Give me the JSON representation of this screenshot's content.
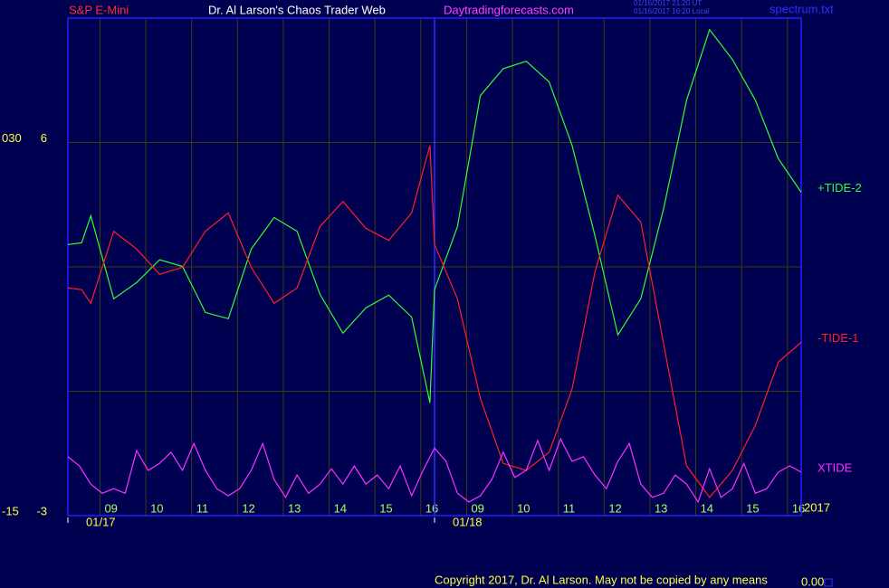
{
  "chart_data": {
    "type": "line",
    "header": {
      "instrument": "S&P E-Mini",
      "site": "Dr. Al Larson's Chaos Trader Web",
      "url": "Daytradingforecasts.com",
      "time_ut": "01/16/2017 21:20 UT",
      "time_local": "01/16/2017 16:20 Local",
      "file": "spectrum.txt"
    },
    "footer": {
      "copyright": "Copyright 2017, Dr. Al Larson. May not be copied by any means",
      "counter": "0.00",
      "year": "2017"
    },
    "xlim": [
      0.3,
      16.3
    ],
    "xticks": [
      {
        "value": 1,
        "label": "09"
      },
      {
        "value": 2,
        "label": "10"
      },
      {
        "value": 3,
        "label": "11"
      },
      {
        "value": 4,
        "label": "12"
      },
      {
        "value": 5,
        "label": "13"
      },
      {
        "value": 6,
        "label": "14"
      },
      {
        "value": 7,
        "label": "15"
      },
      {
        "value": 8,
        "label": "16"
      },
      {
        "value": 9,
        "label": "09"
      },
      {
        "value": 10,
        "label": "10"
      },
      {
        "value": 11,
        "label": "11"
      },
      {
        "value": 12,
        "label": "12"
      },
      {
        "value": 13,
        "label": "13"
      },
      {
        "value": 14,
        "label": "14"
      },
      {
        "value": 15,
        "label": "15"
      },
      {
        "value": 16,
        "label": "16"
      }
    ],
    "dates": [
      {
        "value": 0.3,
        "label": "01/17"
      },
      {
        "value": 8.3,
        "label": "01/18"
      }
    ],
    "ylim": [
      -3,
      9
    ],
    "yticks": [
      -3,
      {
        "value": 0,
        "label": null
      },
      {
        "value": 3,
        "label": null
      },
      6
    ],
    "y2lim": [
      -15,
      45
    ],
    "y2ticks": [
      -15,
      {
        "value": 30,
        "label": "030"
      }
    ],
    "grid": true,
    "x": [
      0.3,
      0.6,
      0.8,
      1.3,
      1.8,
      2.3,
      2.8,
      3.3,
      3.8,
      4.3,
      4.8,
      5.3,
      5.8,
      6.3,
      6.8,
      7.3,
      7.8,
      8.2,
      8.3,
      8.8,
      9.3,
      9.8,
      10.3,
      10.8,
      11.3,
      11.8,
      12.3,
      12.8,
      13.3,
      13.8,
      14.3,
      14.8,
      15.3,
      15.8,
      16.3
    ],
    "series": [
      {
        "name": "+TIDE-2",
        "color": "#30ff30",
        "values": [
          3.54,
          3.58,
          4.23,
          2.23,
          2.62,
          3.17,
          3.01,
          1.9,
          1.75,
          3.43,
          4.19,
          3.86,
          2.34,
          1.4,
          2.01,
          2.32,
          1.79,
          -0.28,
          2.45,
          3.97,
          7.13,
          7.78,
          7.96,
          7.46,
          5.93,
          3.75,
          1.36,
          2.23,
          4.41,
          7.02,
          8.72,
          8.0,
          7.02,
          5.61,
          4.8
        ]
      },
      {
        "name": "-TIDE-1",
        "color": "#ff2020",
        "values": [
          2.49,
          2.45,
          2.12,
          3.86,
          3.43,
          2.82,
          2.99,
          3.86,
          4.3,
          2.99,
          2.12,
          2.49,
          3.97,
          4.58,
          3.93,
          3.64,
          4.3,
          5.93,
          3.54,
          2.23,
          -0.17,
          -1.74,
          -1.91,
          -1.47,
          0.05,
          2.88,
          4.73,
          4.08,
          1.14,
          -1.8,
          -2.56,
          -1.91,
          -0.82,
          0.7,
          1.18
        ]
      },
      {
        "name": "XTIDE",
        "color": "#ff30ff",
        "x": [
          0.3,
          0.55,
          0.8,
          1.05,
          1.3,
          1.55,
          1.8,
          2.05,
          2.3,
          2.55,
          2.8,
          3.05,
          3.3,
          3.55,
          3.8,
          4.05,
          4.3,
          4.55,
          4.8,
          5.05,
          5.3,
          5.55,
          5.8,
          6.05,
          6.3,
          6.55,
          6.8,
          7.05,
          7.3,
          7.55,
          7.8,
          8.05,
          8.3,
          8.55,
          8.8,
          9.05,
          9.3,
          9.55,
          9.8,
          10.05,
          10.3,
          10.55,
          10.8,
          11.05,
          11.3,
          11.55,
          11.8,
          12.05,
          12.3,
          12.55,
          12.8,
          13.05,
          13.3,
          13.55,
          13.8,
          14.05,
          14.3,
          14.55,
          14.8,
          15.05,
          15.3,
          15.55,
          15.8,
          16.05,
          16.3
        ],
        "values": [
          -1.58,
          -1.8,
          -2.24,
          -2.46,
          -2.35,
          -2.46,
          -1.43,
          -1.91,
          -1.74,
          -1.47,
          -1.91,
          -1.26,
          -1.91,
          -2.35,
          -2.52,
          -2.35,
          -1.91,
          -1.26,
          -2.13,
          -2.56,
          -2.02,
          -2.46,
          -2.24,
          -1.87,
          -2.24,
          -1.8,
          -2.24,
          -2.02,
          -2.35,
          -1.8,
          -2.52,
          -1.91,
          -1.37,
          -1.69,
          -2.46,
          -2.67,
          -2.52,
          -2.13,
          -1.47,
          -2.08,
          -1.91,
          -1.19,
          -1.91,
          -1.15,
          -1.69,
          -1.58,
          -2.02,
          -2.35,
          -1.69,
          -1.26,
          -2.24,
          -2.56,
          -2.46,
          -2.02,
          -2.24,
          -2.67,
          -1.87,
          -2.56,
          -2.35,
          -1.74,
          -2.46,
          -2.35,
          -1.95,
          -1.8,
          -1.95
        ]
      }
    ]
  }
}
